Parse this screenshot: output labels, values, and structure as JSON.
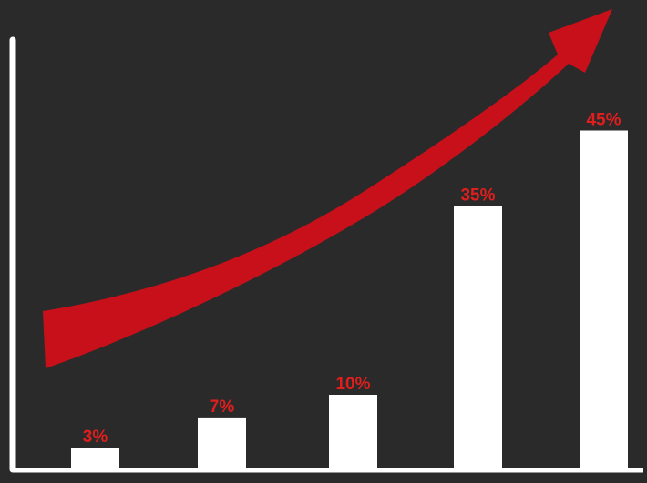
{
  "chart_data": {
    "type": "bar",
    "values": [
      3,
      7,
      10,
      35,
      45
    ],
    "data_labels": [
      "3%",
      "7%",
      "10%",
      "35%",
      "45%"
    ],
    "title": "",
    "xlabel": "",
    "ylabel": "",
    "grid": false,
    "legend": "none",
    "trend_arrow": true
  },
  "colors": {
    "background": "#2a2a2a",
    "bars": "#ffffff",
    "labels": "#e01e1e",
    "arrow": "#c8101a",
    "axis": "#ffffff"
  }
}
